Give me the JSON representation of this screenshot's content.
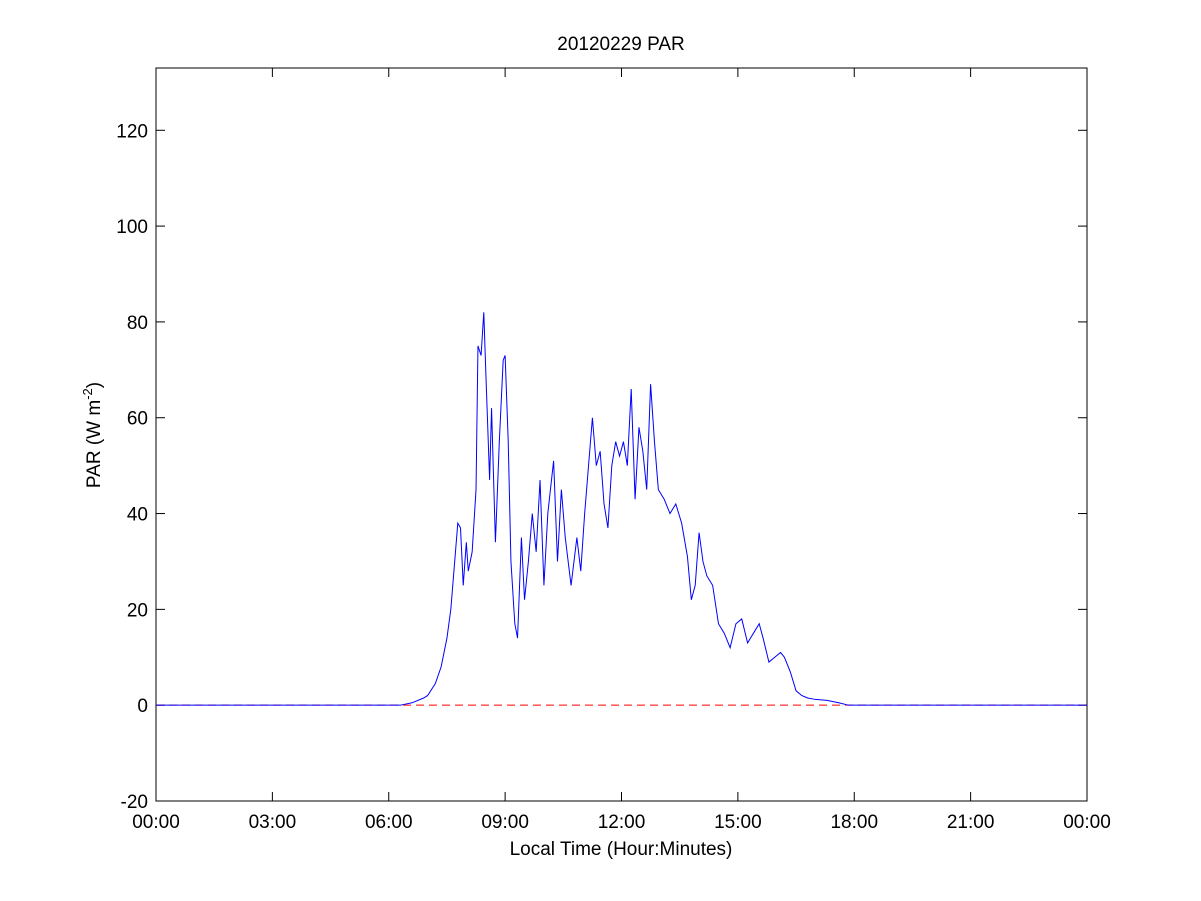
{
  "chart_data": {
    "type": "line",
    "title": "20120229 PAR",
    "x_label": "Local Time (Hour:Minutes)",
    "y_label": [
      "PAR (W m",
      "-2",
      ")"
    ],
    "xlim": [
      0,
      24
    ],
    "xticks": [
      {
        "value": 0,
        "label": "00:00"
      },
      {
        "value": 3,
        "label": "03:00"
      },
      {
        "value": 6,
        "label": "06:00"
      },
      {
        "value": 9,
        "label": "09:00"
      },
      {
        "value": 12,
        "label": "12:00"
      },
      {
        "value": 15,
        "label": "15:00"
      },
      {
        "value": 18,
        "label": "18:00"
      },
      {
        "value": 21,
        "label": "21:00"
      },
      {
        "value": 24,
        "label": "00:00"
      }
    ],
    "ylim": [
      -20,
      133
    ],
    "yticks": [
      -20,
      0,
      20,
      40,
      60,
      80,
      100,
      120
    ],
    "grid": false,
    "reference_lines": [
      {
        "value": 0,
        "color": "#ff0000",
        "style": "dashed"
      }
    ],
    "series": [
      {
        "color": "#0000ff",
        "x": [
          0,
          6.3,
          6.6,
          6.9,
          7.0,
          7.2,
          7.35,
          7.5,
          7.6,
          7.7,
          7.78,
          7.85,
          7.92,
          8.0,
          8.05,
          8.15,
          8.25,
          8.3,
          8.38,
          8.45,
          8.5,
          8.6,
          8.65,
          8.75,
          8.85,
          8.95,
          9.0,
          9.08,
          9.15,
          9.25,
          9.32,
          9.42,
          9.5,
          9.6,
          9.7,
          9.8,
          9.9,
          10.0,
          10.1,
          10.25,
          10.35,
          10.45,
          10.55,
          10.7,
          10.85,
          10.95,
          11.05,
          11.15,
          11.25,
          11.35,
          11.45,
          11.55,
          11.65,
          11.75,
          11.85,
          11.95,
          12.05,
          12.15,
          12.25,
          12.35,
          12.45,
          12.55,
          12.65,
          12.75,
          12.85,
          12.95,
          13.1,
          13.25,
          13.4,
          13.55,
          13.7,
          13.8,
          13.9,
          14.0,
          14.1,
          14.2,
          14.35,
          14.5,
          14.65,
          14.8,
          14.95,
          15.1,
          15.25,
          15.4,
          15.55,
          15.65,
          15.8,
          15.95,
          16.1,
          16.2,
          16.35,
          16.5,
          16.65,
          16.8,
          17.0,
          17.3,
          17.6,
          17.85,
          24
        ],
        "values": [
          0,
          0,
          0.5,
          1.5,
          2,
          4.5,
          8,
          14,
          20,
          30,
          38,
          37,
          25,
          34,
          28,
          32,
          45,
          75,
          73,
          82,
          70,
          47,
          62,
          34,
          55,
          72,
          73,
          55,
          30,
          17,
          14,
          35,
          22,
          30,
          40,
          32,
          47,
          25,
          40,
          51,
          30,
          45,
          35,
          25,
          35,
          28,
          40,
          50,
          60,
          50,
          53,
          42,
          37,
          50,
          55,
          52,
          55,
          50,
          66,
          43,
          58,
          53,
          45,
          67,
          55,
          45,
          43,
          40,
          42,
          38,
          31,
          22,
          25,
          36,
          30,
          27,
          25,
          17,
          15,
          12,
          17,
          18,
          13,
          15,
          17,
          14,
          9,
          10,
          11,
          10,
          7,
          3,
          2,
          1.5,
          1.2,
          1,
          0.5,
          0,
          0
        ]
      }
    ]
  }
}
